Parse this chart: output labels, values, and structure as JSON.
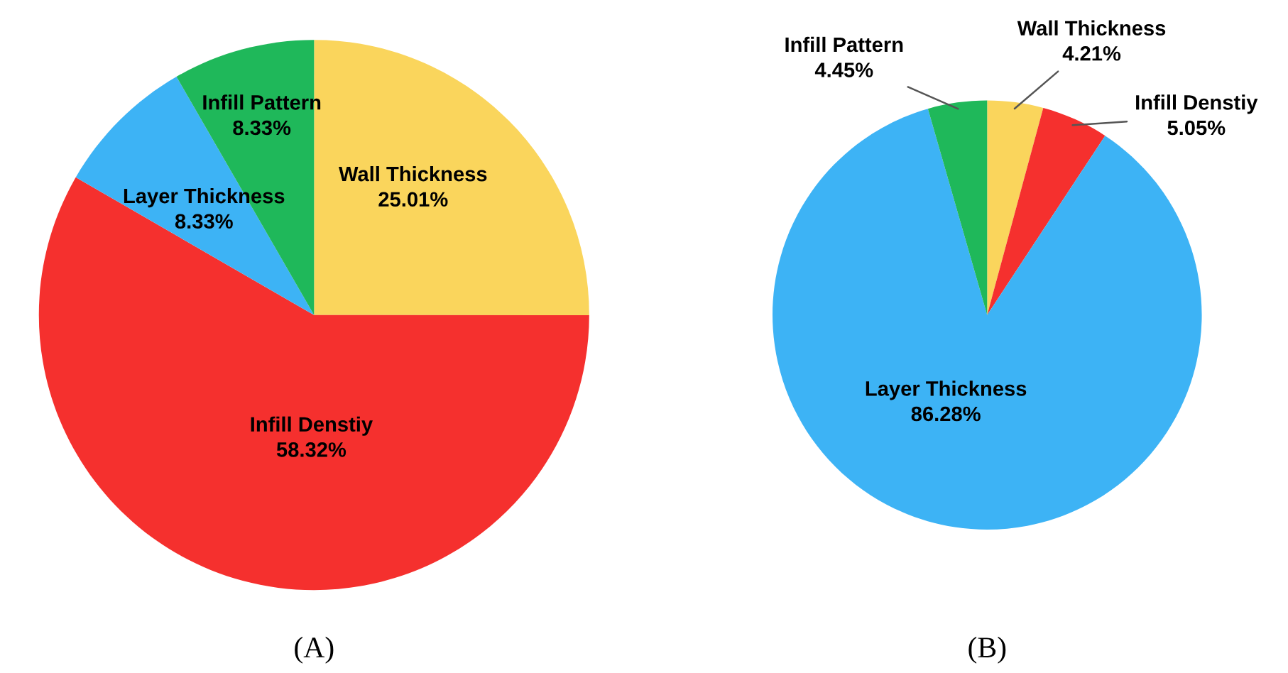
{
  "chart_data": [
    {
      "type": "pie",
      "title": "(A)",
      "categories": [
        "Wall Thickness",
        "Infill Denstiy",
        "Layer Thickness",
        "Infill Pattern"
      ],
      "values": [
        25.01,
        58.32,
        8.33,
        8.33
      ],
      "value_labels": [
        "25.01%",
        "58.32%",
        "8.33%",
        "8.33%"
      ],
      "colors": [
        "#fad55c",
        "#f5302e",
        "#3db3f5",
        "#1fb85a"
      ]
    },
    {
      "type": "pie",
      "title": "(B)",
      "categories": [
        "Wall Thickness",
        "Infill Denstiy",
        "Layer Thickness",
        "Infill Pattern"
      ],
      "values": [
        4.21,
        5.05,
        86.28,
        4.45
      ],
      "value_labels": [
        "4.21%",
        "5.05%",
        "86.28%",
        "4.45%"
      ],
      "colors": [
        "#fad55c",
        "#f5302e",
        "#3db3f5",
        "#1fb85a"
      ]
    }
  ]
}
